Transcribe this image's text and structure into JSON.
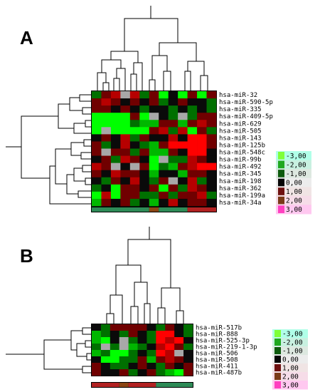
{
  "chart_data": [
    {
      "type": "heatmap",
      "panel_label": "A",
      "rows": [
        "hsa-miR-32",
        "hsa-miR-590-5p",
        "hsa-miR-335",
        "hsa-miR-409-5p",
        "hsa-miR-629",
        "hsa-miR-505",
        "hsa-miR-143",
        "hsa-miR-125b",
        "hsa-miR-548c",
        "hsa-miR-99b",
        "hsa-miR-492",
        "hsa-miR-345",
        "hsa-miR-198",
        "hsa-miR-362",
        "hsa-miR-199a",
        "hsa-miR-34a"
      ],
      "n_columns": 13,
      "group_bar": [
        {
          "color": "#2e8b57",
          "span": 6
        },
        {
          "color": "#8b4513",
          "span": 1
        },
        {
          "color": "#2e8b57",
          "span": 3
        },
        {
          "color": "#b22222",
          "span": 3
        }
      ],
      "values": [
        [
          -1,
          1,
          2,
          "na",
          2,
          -1,
          1,
          -3,
          0,
          -3,
          1,
          -3,
          1
        ],
        [
          1,
          2,
          1,
          0,
          1,
          0,
          1,
          -1,
          0,
          1,
          0,
          0,
          -1
        ],
        [
          1,
          1,
          0,
          1,
          0,
          -1,
          0,
          0,
          -1,
          0,
          -1,
          0,
          -1
        ],
        [
          -3,
          -3,
          -3,
          -3,
          1,
          -3,
          "na",
          0,
          -1,
          "na",
          -1,
          1,
          1
        ],
        [
          -3,
          -3,
          -3,
          -3,
          -1,
          -2,
          -2,
          1,
          1,
          -2,
          1,
          2,
          1
        ],
        [
          -3,
          "na",
          -3,
          -3,
          -3,
          -3,
          1,
          2,
          -1,
          2,
          -3,
          1,
          -1
        ],
        [
          0,
          1,
          0,
          2,
          -1,
          1,
          0,
          0,
          2,
          0,
          3,
          3,
          1
        ],
        [
          1,
          -1,
          0,
          2,
          0,
          -1,
          -2,
          1,
          3,
          3,
          3,
          3,
          1
        ],
        [
          1,
          "na",
          1,
          1,
          -1,
          1,
          -2,
          -2,
          1,
          0,
          3,
          3,
          0
        ],
        [
          0,
          1,
          -1,
          2,
          1,
          0,
          -3,
          "na",
          -1,
          -1,
          2,
          1,
          0
        ],
        [
          2,
          1,
          "na",
          0,
          "na",
          1,
          -3,
          -1,
          -2,
          1,
          2,
          3,
          3
        ],
        [
          1,
          0,
          2,
          1,
          1,
          0,
          -2,
          0,
          0,
          -2,
          1,
          1,
          0
        ],
        [
          0,
          -1,
          1,
          0,
          2,
          0,
          -1,
          1,
          "na",
          0,
          2,
          -1,
          0
        ],
        [
          -1,
          0,
          -3,
          1,
          1,
          0,
          1,
          -3,
          1,
          -1,
          2,
          1,
          0
        ],
        [
          -3,
          2,
          -3,
          1,
          1,
          -1,
          -1,
          1,
          -1,
          1,
          1,
          2,
          -1
        ],
        [
          -2,
          1,
          0,
          1,
          -1,
          0,
          -2,
          0,
          2,
          0,
          1,
          1,
          0
        ]
      ],
      "legend": [
        "-3,00",
        "-2,00",
        "-1,00",
        "0,00",
        "1,00",
        "2,00",
        "3,00"
      ]
    },
    {
      "type": "heatmap",
      "panel_label": "B",
      "rows": [
        "hsa-miR-517b",
        "hsa-miR-888",
        "hsa-miR-525-3p",
        "hsa-miR-219-1-3p",
        "hsa-miR-506",
        "hsa-miR-508",
        "hsa-miR-411",
        "hsa-miR-487b"
      ],
      "n_columns": 11,
      "group_bar": [
        {
          "color": "#b22222",
          "span": 3
        },
        {
          "color": "#8b4513",
          "span": 1
        },
        {
          "color": "#b22222",
          "span": 3
        },
        {
          "color": "#2e8b57",
          "span": 4
        }
      ],
      "values": [
        [
          0,
          -1,
          1,
          1,
          1,
          1,
          0,
          -1,
          1,
          0,
          -1
        ],
        [
          -2,
          -1,
          0,
          -1,
          1,
          0,
          -1,
          3,
          3,
          0,
          -1
        ],
        [
          -2,
          -3,
          0,
          "na",
          -1,
          0,
          -1,
          3,
          2,
          3,
          0
        ],
        [
          -1,
          "na",
          -1,
          "na",
          -2,
          -1,
          0,
          2,
          3,
          1,
          -1
        ],
        [
          -2,
          -1,
          -3,
          -3,
          -1,
          0,
          -1,
          3,
          2,
          "na",
          0
        ],
        [
          0,
          -3,
          -3,
          -1,
          -1,
          1,
          -2,
          1,
          2,
          1,
          0
        ],
        [
          1,
          0,
          -1,
          -1,
          0,
          1,
          0,
          -1,
          1,
          0,
          1
        ],
        [
          1,
          0,
          0,
          1,
          -1,
          0,
          1,
          -1,
          -2,
          -3,
          1
        ]
      ],
      "legend": [
        "-3,00",
        "-2,00",
        "-1,00",
        "0,00",
        "1,00",
        "2,00",
        "3,00"
      ]
    }
  ]
}
